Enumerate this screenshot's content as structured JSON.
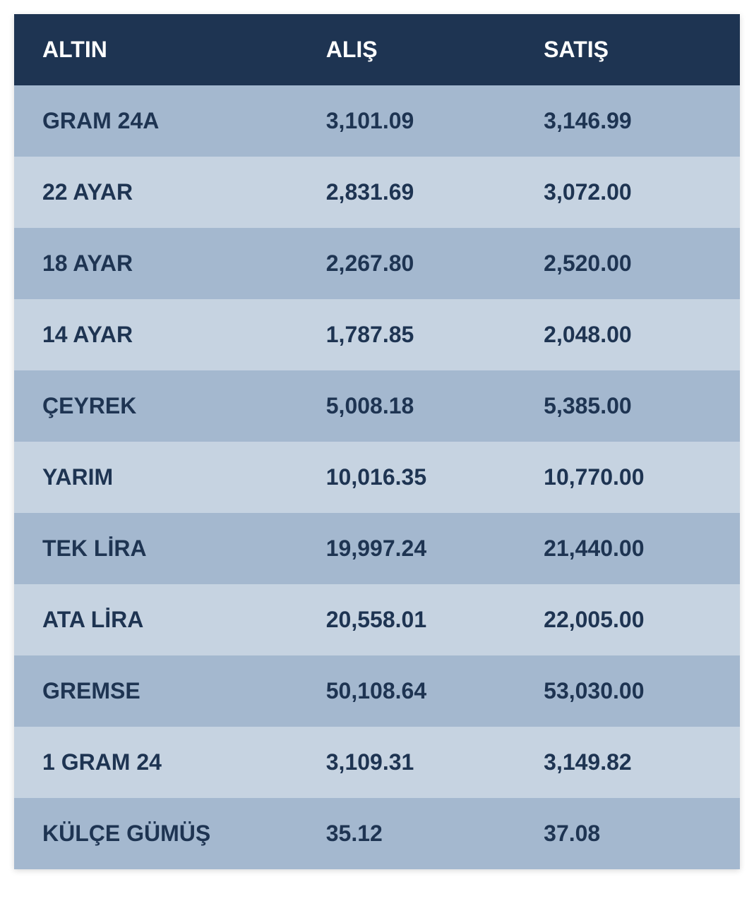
{
  "table": {
    "type": "table",
    "header_bg_color": "#1e3452",
    "header_text_color": "#ffffff",
    "row_even_bg_color": "#a4b8cf",
    "row_odd_bg_color": "#c6d3e1",
    "cell_text_color": "#1e3452",
    "font_size": 32,
    "font_weight": "bold",
    "columns": [
      {
        "label": "ALTIN",
        "width_pct": 42,
        "align": "left"
      },
      {
        "label": "ALIŞ",
        "width_pct": 30,
        "align": "left"
      },
      {
        "label": "SATIŞ",
        "width_pct": 28,
        "align": "left"
      }
    ],
    "rows": [
      {
        "name": "GRAM 24A",
        "buy": "3,101.09",
        "sell": "3,146.99"
      },
      {
        "name": "22 AYAR",
        "buy": "2,831.69",
        "sell": "3,072.00"
      },
      {
        "name": "18 AYAR",
        "buy": "2,267.80",
        "sell": "2,520.00"
      },
      {
        "name": "14 AYAR",
        "buy": "1,787.85",
        "sell": "2,048.00"
      },
      {
        "name": "ÇEYREK",
        "buy": "5,008.18",
        "sell": "5,385.00"
      },
      {
        "name": "YARIM",
        "buy": "10,016.35",
        "sell": "10,770.00"
      },
      {
        "name": "TEK LİRA",
        "buy": "19,997.24",
        "sell": "21,440.00"
      },
      {
        "name": "ATA LİRA",
        "buy": "20,558.01",
        "sell": "22,005.00"
      },
      {
        "name": "GREMSE",
        "buy": "50,108.64",
        "sell": "53,030.00"
      },
      {
        "name": "1 GRAM 24",
        "buy": "3,109.31",
        "sell": "3,149.82"
      },
      {
        "name": "KÜLÇE GÜMÜŞ",
        "buy": "35.12",
        "sell": "37.08"
      }
    ]
  }
}
